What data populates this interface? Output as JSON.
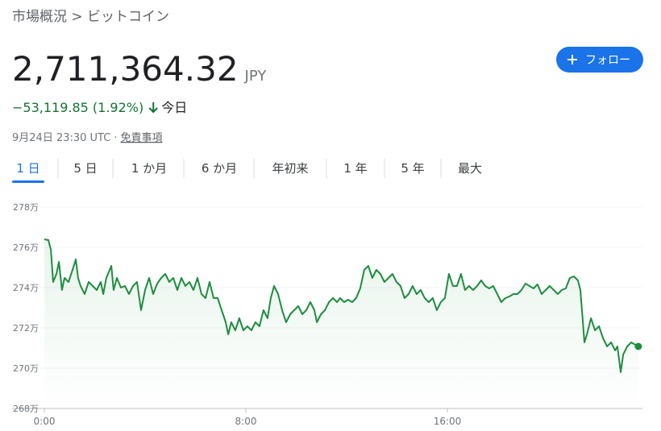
{
  "breadcrumb": "市場概況 > ビットコイン",
  "price": "2,711,364.32",
  "currency": "JPY",
  "follow_button": "フォロー",
  "change": "−53,119.85 (1.92%)",
  "change_period": "今日",
  "timestamp": "9月24日 23:30 UTC",
  "separator": "·",
  "disclaimer": "免責事項",
  "tabs": [
    "1 日",
    "5 日",
    "1 か月",
    "6 か月",
    "年初来",
    "1 年",
    "5 年",
    "最大"
  ],
  "active_tab": 0,
  "chart_data": {
    "type": "line",
    "color": "#1e8e3e",
    "grid": true,
    "xlim": [
      0,
      23.68
    ],
    "xticks": [
      {
        "value": 0,
        "label": "0:00"
      },
      {
        "value": 8,
        "label": "8:00"
      },
      {
        "value": 16,
        "label": "16:00"
      }
    ],
    "ylim": [
      2680000,
      2780000
    ],
    "yticks": [
      {
        "value": 2680000,
        "label": "268万"
      },
      {
        "value": 2700000,
        "label": "270万"
      },
      {
        "value": 2720000,
        "label": "272万"
      },
      {
        "value": 2740000,
        "label": "274万"
      },
      {
        "value": 2760000,
        "label": "276万"
      },
      {
        "value": 2780000,
        "label": "278万"
      }
    ],
    "x": [
      0,
      0.16,
      0.26,
      0.35,
      0.48,
      0.58,
      0.7,
      0.8,
      0.96,
      1.12,
      1.25,
      1.34,
      1.44,
      1.6,
      1.76,
      1.92,
      2.08,
      2.24,
      2.34,
      2.46,
      2.66,
      2.75,
      2.88,
      3.04,
      3.2,
      3.36,
      3.52,
      3.68,
      3.84,
      4.0,
      4.16,
      4.32,
      4.48,
      4.64,
      4.8,
      4.96,
      5.12,
      5.28,
      5.44,
      5.6,
      5.76,
      5.92,
      6.08,
      6.24,
      6.4,
      6.56,
      6.72,
      6.88,
      7.04,
      7.2,
      7.3,
      7.42,
      7.58,
      7.74,
      7.9,
      8.06,
      8.22,
      8.38,
      8.54,
      8.7,
      8.86,
      8.99,
      9.12,
      9.28,
      9.44,
      9.6,
      9.76,
      9.92,
      10.08,
      10.24,
      10.4,
      10.56,
      10.72,
      10.82,
      10.98,
      11.14,
      11.3,
      11.46,
      11.62,
      11.74,
      11.9,
      12.06,
      12.22,
      12.38,
      12.54,
      12.7,
      12.86,
      13.02,
      13.18,
      13.34,
      13.5,
      13.66,
      13.82,
      13.98,
      14.14,
      14.3,
      14.46,
      14.62,
      14.78,
      14.94,
      15.1,
      15.26,
      15.42,
      15.58,
      15.74,
      15.9,
      16.06,
      16.22,
      16.38,
      16.54,
      16.7,
      16.86,
      17.02,
      17.18,
      17.34,
      17.5,
      17.66,
      17.82,
      17.98,
      18.14,
      18.3,
      18.46,
      18.62,
      18.78,
      18.94,
      19.1,
      19.26,
      19.42,
      19.58,
      19.74,
      19.9,
      20.06,
      20.22,
      20.38,
      20.54,
      20.7,
      20.86,
      21.02,
      21.18,
      21.28,
      21.38,
      21.44,
      21.54,
      21.7,
      21.86,
      22.02,
      22.18,
      22.34,
      22.5,
      22.66,
      22.75,
      22.88,
      22.98,
      23.14,
      23.3,
      23.46,
      23.58
    ],
    "values": [
      2764000,
      2763600,
      2758800,
      2742800,
      2746800,
      2752800,
      2738800,
      2744800,
      2742800,
      2748800,
      2754000,
      2744800,
      2740800,
      2736800,
      2742800,
      2740800,
      2738800,
      2742800,
      2736800,
      2744800,
      2750800,
      2738800,
      2744800,
      2740000,
      2740800,
      2736800,
      2740800,
      2742800,
      2728800,
      2738800,
      2744800,
      2736800,
      2742000,
      2744800,
      2746800,
      2742800,
      2744800,
      2738800,
      2744800,
      2740800,
      2742800,
      2738800,
      2744800,
      2736800,
      2734800,
      2742800,
      2734800,
      2734800,
      2728800,
      2722800,
      2716800,
      2722800,
      2718800,
      2724800,
      2718800,
      2720800,
      2718800,
      2722800,
      2720800,
      2728800,
      2724800,
      2734800,
      2740800,
      2736800,
      2728800,
      2722800,
      2726800,
      2728800,
      2730800,
      2726800,
      2728800,
      2732800,
      2728800,
      2722800,
      2726800,
      2728800,
      2732800,
      2734800,
      2732800,
      2734800,
      2732800,
      2734000,
      2732800,
      2734800,
      2739600,
      2748800,
      2750800,
      2744800,
      2748800,
      2746800,
      2742800,
      2744800,
      2746800,
      2742800,
      2740800,
      2734800,
      2736800,
      2740800,
      2736800,
      2738800,
      2734800,
      2732800,
      2734800,
      2728800,
      2732800,
      2734800,
      2746800,
      2740800,
      2740800,
      2746800,
      2738800,
      2740800,
      2738800,
      2740800,
      2743600,
      2740800,
      2739600,
      2740800,
      2736800,
      2732800,
      2734800,
      2735600,
      2736800,
      2736800,
      2738800,
      2742000,
      2740800,
      2739600,
      2741600,
      2736800,
      2738800,
      2740800,
      2738800,
      2736800,
      2738800,
      2739600,
      2744800,
      2745600,
      2743600,
      2738800,
      2722800,
      2712800,
      2716800,
      2724800,
      2718800,
      2720800,
      2714800,
      2710800,
      2712800,
      2708800,
      2710800,
      2698000,
      2706800,
      2710800,
      2712800,
      2711600,
      2710800
    ]
  }
}
